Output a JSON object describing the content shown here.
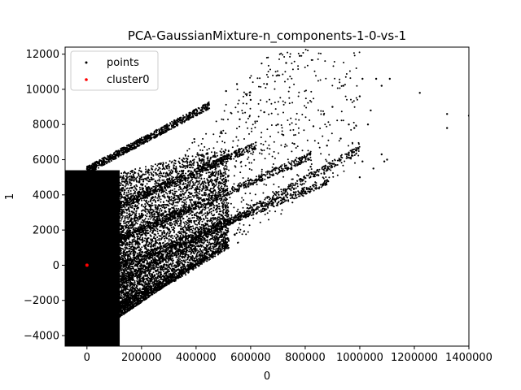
{
  "chart_data": {
    "type": "scatter",
    "title": "PCA-GaussianMixture-n_components-1-0-vs-1",
    "xlabel": "0",
    "ylabel": "1",
    "xlim": [
      -80000,
      1400000
    ],
    "ylim": [
      -4600,
      12400
    ],
    "xticks": [
      0,
      200000,
      400000,
      600000,
      800000,
      1000000,
      1200000,
      1400000
    ],
    "xtick_labels": [
      "0",
      "200000",
      "400000",
      "600000",
      "800000",
      "1000000",
      "1200000",
      "1400000"
    ],
    "yticks": [
      -4000,
      -2000,
      0,
      2000,
      4000,
      6000,
      8000,
      10000,
      12000
    ],
    "ytick_labels": [
      "−4000",
      "−2000",
      "0",
      "2000",
      "4000",
      "6000",
      "8000",
      "10000",
      "12000"
    ],
    "grid": false,
    "legend_position": "upper-left",
    "series": [
      {
        "name": "points",
        "color": "#000000",
        "dense_region": {
          "x_range": [
            -80000,
            120000
          ],
          "y_range": [
            -4600,
            5400
          ]
        },
        "lower_edge": [
          [
            0,
            -4200
          ],
          [
            400000,
            0
          ],
          [
            800000,
            3700
          ],
          [
            1000000,
            5600
          ]
        ],
        "bands": [
          {
            "x": [
              0,
              450000
            ],
            "y": [
              5400,
              9100
            ]
          },
          {
            "x": [
              0,
              620000
            ],
            "y": [
              2600,
              6800
            ]
          },
          {
            "x": [
              0,
              820000
            ],
            "y": [
              700,
              6200
            ]
          },
          {
            "x": [
              0,
              890000
            ],
            "y": [
              -800,
              4800
            ]
          },
          {
            "x": [
              0,
              1000000
            ],
            "y": [
              -2000,
              6600
            ]
          },
          {
            "x": [
              0,
              580000
            ],
            "y": [
              -3200,
              1300
            ]
          }
        ],
        "outliers": [
          [
            780000,
            11900
          ],
          [
            730000,
            11500
          ],
          [
            1010000,
            10600
          ],
          [
            1060000,
            10600
          ],
          [
            1110000,
            10600
          ],
          [
            1220000,
            9800
          ],
          [
            1320000,
            8600
          ],
          [
            1320000,
            7800
          ],
          [
            1400000,
            8500
          ],
          [
            700000,
            10800
          ],
          [
            660000,
            10300
          ],
          [
            900000,
            9000
          ],
          [
            960000,
            8000
          ],
          [
            1080000,
            10200
          ],
          [
            1000000,
            9600
          ],
          [
            1040000,
            8800
          ],
          [
            930000,
            7200
          ],
          [
            980000,
            7800
          ],
          [
            1030000,
            8000
          ],
          [
            1100000,
            6000
          ],
          [
            1080000,
            6300
          ],
          [
            940000,
            10200
          ],
          [
            700000,
            8000
          ],
          [
            830000,
            7900
          ],
          [
            880000,
            6800
          ],
          [
            560000,
            8300
          ],
          [
            510000,
            9900
          ],
          [
            550000,
            10300
          ],
          [
            600000,
            9400
          ],
          [
            650000,
            8700
          ],
          [
            720000,
            7400
          ],
          [
            760000,
            6900
          ],
          [
            820000,
            5600
          ],
          [
            870000,
            5200
          ],
          [
            960000,
            6400
          ],
          [
            1010000,
            5900
          ],
          [
            1050000,
            5500
          ],
          [
            1090000,
            5900
          ],
          [
            1000000,
            5000
          ]
        ]
      },
      {
        "name": "cluster0",
        "color": "#ff0000",
        "points": [
          [
            0,
            0
          ]
        ]
      }
    ]
  }
}
